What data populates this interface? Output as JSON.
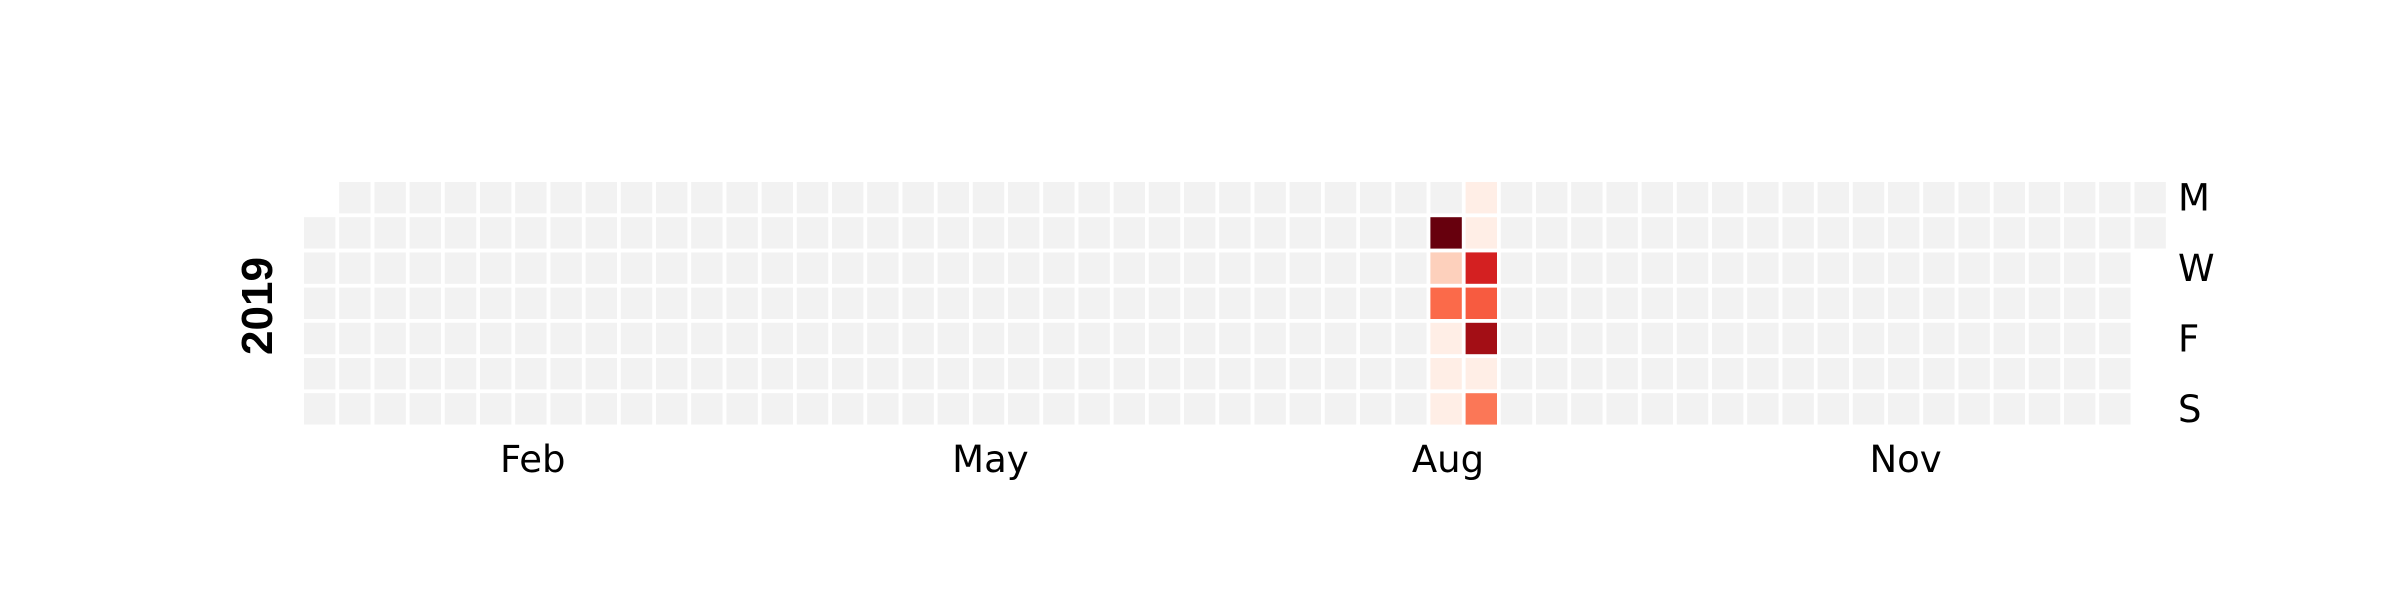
{
  "chart_data": {
    "type": "heatmap",
    "title": "",
    "year": "2019",
    "year_label": "2019",
    "colormap": "Reds",
    "colors": {
      "background_cell": "#f2f2f2",
      "scale_low": "#fff5f0",
      "scale_high": "#67000d",
      "cell_border": "#ffffff"
    },
    "month_labels": [
      {
        "label": "Feb",
        "month": 2
      },
      {
        "label": "May",
        "month": 5
      },
      {
        "label": "Aug",
        "month": 8
      },
      {
        "label": "Nov",
        "month": 11
      }
    ],
    "weekday_labels": [
      {
        "label": "M",
        "weekday": 0
      },
      {
        "label": "W",
        "weekday": 2
      },
      {
        "label": "F",
        "weekday": 4
      },
      {
        "label": "S",
        "weekday": 6
      }
    ],
    "value_range": [
      0,
      1
    ],
    "values": [
      {
        "date": "2019-08-13",
        "value": 1.0
      },
      {
        "date": "2019-08-14",
        "value": 0.18
      },
      {
        "date": "2019-08-15",
        "value": 0.5
      },
      {
        "date": "2019-08-16",
        "value": 0.04
      },
      {
        "date": "2019-08-17",
        "value": 0.04
      },
      {
        "date": "2019-08-18",
        "value": 0.04
      },
      {
        "date": "2019-08-19",
        "value": 0.04
      },
      {
        "date": "2019-08-20",
        "value": 0.04
      },
      {
        "date": "2019-08-21",
        "value": 0.72
      },
      {
        "date": "2019-08-22",
        "value": 0.54
      },
      {
        "date": "2019-08-23",
        "value": 0.88
      },
      {
        "date": "2019-08-24",
        "value": 0.04
      },
      {
        "date": "2019-08-25",
        "value": 0.46
      }
    ]
  }
}
